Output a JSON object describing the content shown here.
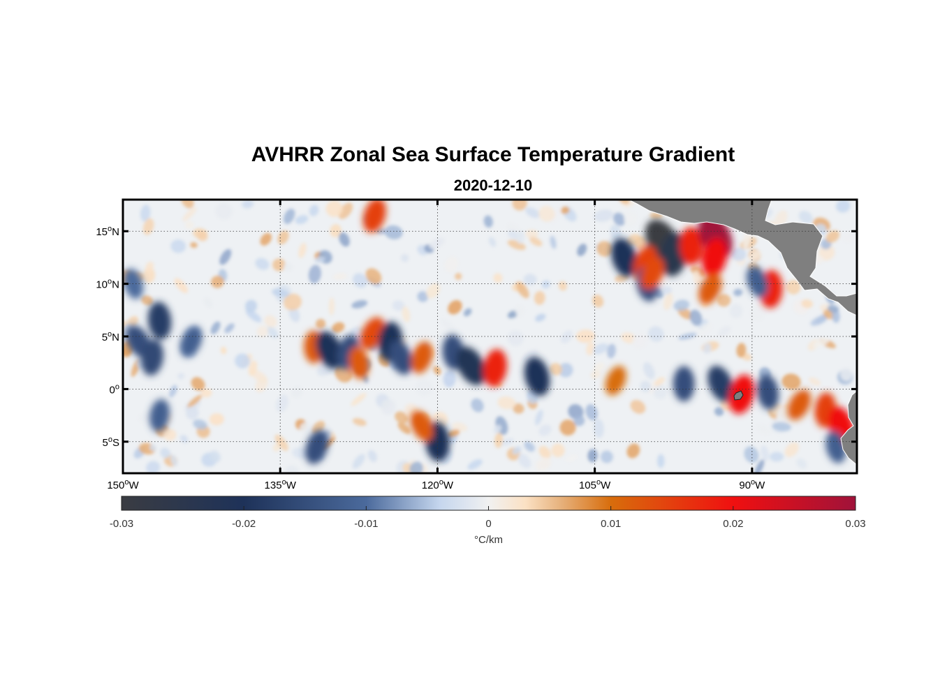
{
  "figure": {
    "title": "AVHRR Zonal Sea Surface Temperature Gradient",
    "subtitle": "2020-12-10"
  },
  "map": {
    "lon_range": [
      -150,
      -80
    ],
    "lat_range": [
      -8,
      18
    ],
    "lon_ticks": [
      {
        "value": -150,
        "deg": "150",
        "hemi": "W"
      },
      {
        "value": -135,
        "deg": "135",
        "hemi": "W"
      },
      {
        "value": -120,
        "deg": "120",
        "hemi": "W"
      },
      {
        "value": -105,
        "deg": "105",
        "hemi": "W"
      },
      {
        "value": -90,
        "deg": "90",
        "hemi": "W"
      }
    ],
    "lat_ticks": [
      {
        "value": 15,
        "deg": "15",
        "hemi": "N"
      },
      {
        "value": 10,
        "deg": "10",
        "hemi": "N"
      },
      {
        "value": 5,
        "deg": "5",
        "hemi": "N"
      },
      {
        "value": 0,
        "deg": "0",
        "hemi": ""
      },
      {
        "value": -5,
        "deg": "5",
        "hemi": "S"
      }
    ],
    "grid": "dotted",
    "land_color": "#7f7f7f",
    "features": [
      {
        "lon": -98.5,
        "lat": 14.0,
        "value": -0.03
      },
      {
        "lon": -97.5,
        "lat": 12.8,
        "value": -0.025
      },
      {
        "lon": -102.2,
        "lat": 12.5,
        "value": -0.02
      },
      {
        "lon": -100.2,
        "lat": 12.0,
        "value": 0.015
      },
      {
        "lon": -95.8,
        "lat": 13.6,
        "value": 0.018
      },
      {
        "lon": -93.5,
        "lat": 14.5,
        "value": 0.03
      },
      {
        "lon": -93.6,
        "lat": 12.5,
        "value": 0.02
      },
      {
        "lon": -100.0,
        "lat": 10.0,
        "value": -0.015
      },
      {
        "lon": -94.0,
        "lat": 9.5,
        "value": 0.012
      },
      {
        "lon": -88.2,
        "lat": 9.5,
        "value": 0.018
      },
      {
        "lon": -89.5,
        "lat": 10.2,
        "value": -0.012
      },
      {
        "lon": -126.0,
        "lat": 16.5,
        "value": 0.015
      },
      {
        "lon": -146.5,
        "lat": 6.5,
        "value": -0.018
      },
      {
        "lon": -148.5,
        "lat": 4.5,
        "value": -0.015
      },
      {
        "lon": -147.2,
        "lat": 3.0,
        "value": -0.016
      },
      {
        "lon": -149.0,
        "lat": 10.0,
        "value": -0.01
      },
      {
        "lon": -143.5,
        "lat": 4.5,
        "value": -0.012
      },
      {
        "lon": -131.8,
        "lat": 4.0,
        "value": 0.012
      },
      {
        "lon": -130.3,
        "lat": 3.7,
        "value": -0.02
      },
      {
        "lon": -128.5,
        "lat": 3.5,
        "value": -0.015
      },
      {
        "lon": -127.5,
        "lat": 2.5,
        "value": 0.012
      },
      {
        "lon": -126.2,
        "lat": 5.3,
        "value": 0.014
      },
      {
        "lon": -124.5,
        "lat": 4.5,
        "value": -0.02
      },
      {
        "lon": -123.5,
        "lat": 3.0,
        "value": -0.015
      },
      {
        "lon": -121.5,
        "lat": 3.0,
        "value": 0.012
      },
      {
        "lon": -118.5,
        "lat": 3.5,
        "value": -0.015
      },
      {
        "lon": -116.8,
        "lat": 2.2,
        "value": -0.022
      },
      {
        "lon": -114.5,
        "lat": 2.0,
        "value": 0.018
      },
      {
        "lon": -110.5,
        "lat": 1.2,
        "value": -0.02
      },
      {
        "lon": -103.0,
        "lat": 0.8,
        "value": 0.01
      },
      {
        "lon": -96.5,
        "lat": 0.5,
        "value": -0.015
      },
      {
        "lon": -93.0,
        "lat": 0.5,
        "value": -0.018
      },
      {
        "lon": -91.0,
        "lat": -0.5,
        "value": 0.02
      },
      {
        "lon": -88.5,
        "lat": -0.3,
        "value": -0.015
      },
      {
        "lon": -85.5,
        "lat": -1.5,
        "value": 0.012
      },
      {
        "lon": -83.0,
        "lat": -2.0,
        "value": 0.015
      },
      {
        "lon": -81.5,
        "lat": -3.5,
        "value": 0.02
      },
      {
        "lon": -131.5,
        "lat": -5.5,
        "value": -0.015
      },
      {
        "lon": -120.0,
        "lat": -5.0,
        "value": -0.02
      },
      {
        "lon": -121.5,
        "lat": -3.5,
        "value": 0.012
      },
      {
        "lon": -146.5,
        "lat": -2.5,
        "value": -0.012
      },
      {
        "lon": -82.0,
        "lat": -5.5,
        "value": -0.012
      },
      {
        "lon": -99.5,
        "lat": 11.0,
        "value": 0.014
      }
    ],
    "islands": [
      {
        "name": "Galapagos",
        "lon": -91.0,
        "lat": -0.5
      }
    ]
  },
  "colorbar": {
    "min": -0.03,
    "max": 0.03,
    "tick_labels": [
      "-0.03",
      "-0.02",
      "-0.01",
      "0",
      "0.01",
      "0.02",
      "0.03"
    ],
    "tick_values": [
      -0.03,
      -0.02,
      -0.01,
      0,
      0.01,
      0.02,
      0.03
    ],
    "label": "°C/km",
    "stops": [
      {
        "v": -0.03,
        "c": "#3a3c42"
      },
      {
        "v": -0.02,
        "c": "#1e3259"
      },
      {
        "v": -0.01,
        "c": "#4b6a9c"
      },
      {
        "v": -0.004,
        "c": "#c5d6ee"
      },
      {
        "v": 0.0,
        "c": "#f1f1f1"
      },
      {
        "v": 0.003,
        "c": "#fbe1c4"
      },
      {
        "v": 0.006,
        "c": "#e6b07a"
      },
      {
        "v": 0.01,
        "c": "#d86d0c"
      },
      {
        "v": 0.02,
        "c": "#f01010"
      },
      {
        "v": 0.03,
        "c": "#a0123a"
      }
    ]
  }
}
